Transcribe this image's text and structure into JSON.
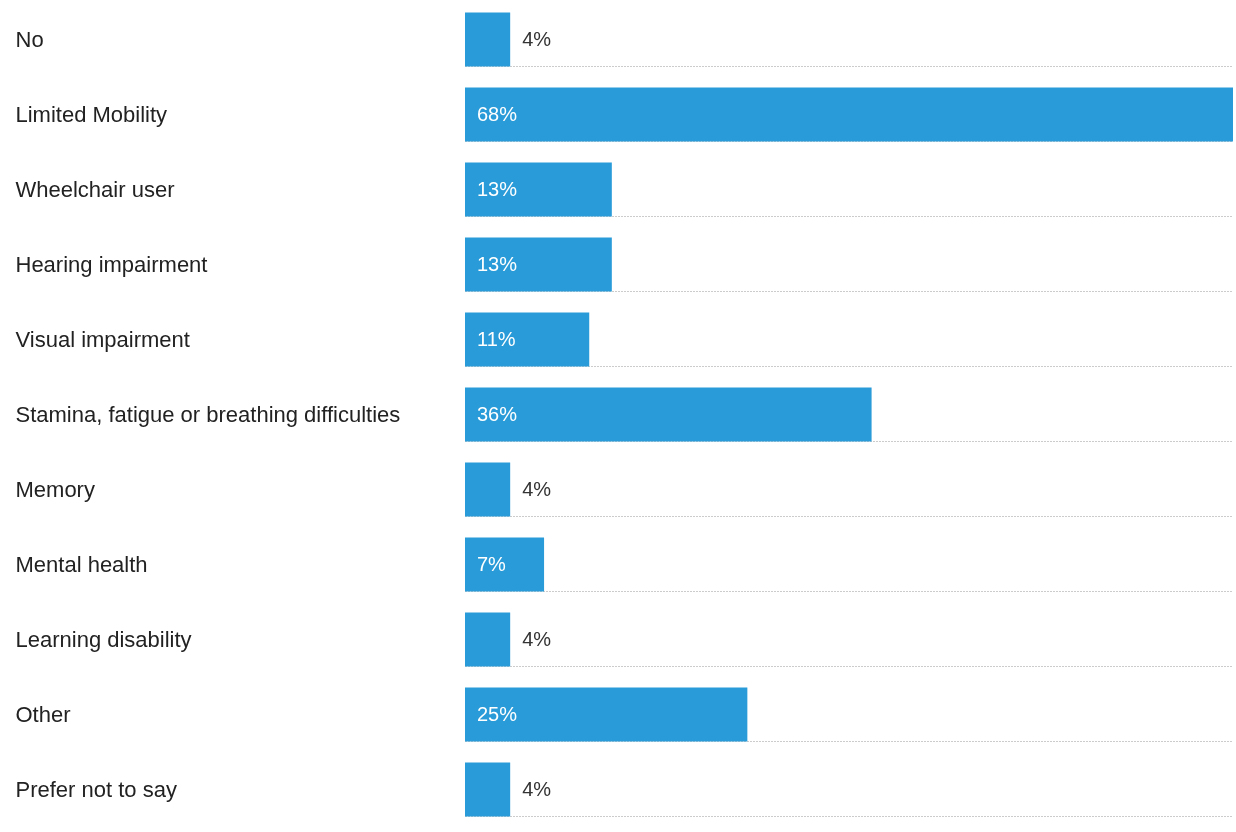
{
  "chart_data": {
    "type": "bar",
    "orientation": "horizontal",
    "categories": [
      "No",
      "Limited Mobility",
      "Wheelchair user",
      "Hearing impairment",
      "Visual impairment",
      "Stamina, fatigue or breathing difficulties",
      "Memory",
      "Mental health",
      "Learning disability",
      "Other",
      "Prefer not to say"
    ],
    "values": [
      4,
      68,
      13,
      13,
      11,
      36,
      4,
      7,
      4,
      25,
      4
    ],
    "value_labels": [
      "4%",
      "68%",
      "13%",
      "13%",
      "11%",
      "36%",
      "4%",
      "7%",
      "4%",
      "25%",
      "4%"
    ],
    "color": "#299bd8",
    "grid": "y"
  }
}
